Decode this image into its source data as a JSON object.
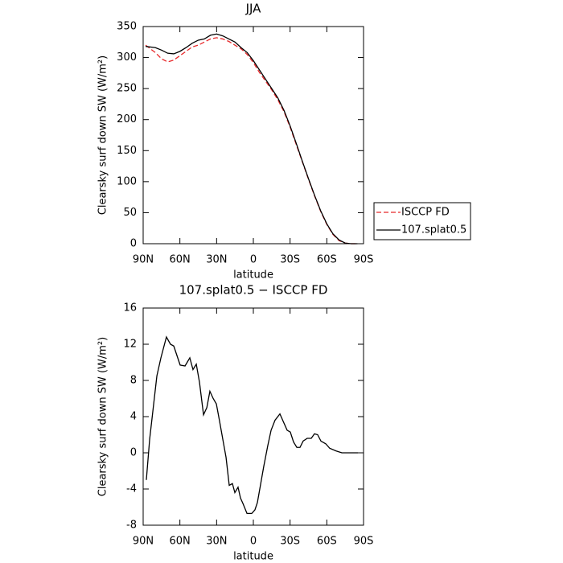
{
  "chart_data": [
    {
      "type": "line",
      "title": "JJA",
      "x_label": "latitude",
      "y_label": "Clearsky surf down SW (W/m²)",
      "xlim": [
        90,
        -90
      ],
      "ylim": [
        0,
        350
      ],
      "xticks": [
        {
          "value": 90,
          "label": "90N"
        },
        {
          "value": 60,
          "label": "60N"
        },
        {
          "value": 30,
          "label": "30N"
        },
        0,
        {
          "value": -30,
          "label": "30S"
        },
        {
          "value": -60,
          "label": "60S"
        },
        {
          "value": -90,
          "label": "90S"
        }
      ],
      "yticks": [
        0,
        50,
        100,
        150,
        200,
        250,
        300,
        350
      ],
      "legend": "outside-right",
      "x": [
        88,
        80,
        75,
        70,
        65,
        60,
        55,
        50,
        45,
        40,
        35,
        30,
        25,
        20,
        15,
        10,
        5,
        0,
        -5,
        -10,
        -15,
        -20,
        -25,
        -30,
        -35,
        -40,
        -45,
        -50,
        -55,
        -60,
        -65,
        -70,
        -75,
        -80,
        -85
      ],
      "series": [
        {
          "name": "ISCCP FD",
          "color": "#e8292b",
          "dashed": true,
          "values": [
            320,
            308,
            298,
            293,
            296,
            303,
            310,
            317,
            320,
            325,
            330,
            332,
            330,
            326,
            320,
            314,
            305,
            292,
            276,
            262,
            248,
            232,
            213,
            188,
            160,
            132,
            104,
            77,
            52,
            31,
            15,
            5,
            1,
            0,
            0
          ]
        },
        {
          "name": "107.splat0.5",
          "color": "#000000",
          "dashed": false,
          "values": [
            318,
            316,
            312,
            307,
            306,
            310,
            316,
            323,
            328,
            330,
            336,
            338,
            335,
            330,
            325,
            316,
            308,
            295,
            280,
            265,
            250,
            235,
            215,
            190,
            162,
            133,
            105,
            78,
            53,
            32,
            16,
            6,
            1,
            0,
            0
          ]
        }
      ]
    },
    {
      "type": "line",
      "title": "107.splat0.5 − ISCCP FD",
      "x_label": "latitude",
      "y_label": "Clearsky surf down SW (W/m²)",
      "xlim": [
        90,
        -90
      ],
      "ylim": [
        -8,
        16
      ],
      "xticks": [
        {
          "value": 90,
          "label": "90N"
        },
        {
          "value": 60,
          "label": "60N"
        },
        {
          "value": 30,
          "label": "30N"
        },
        0,
        {
          "value": -30,
          "label": "30S"
        },
        {
          "value": -60,
          "label": "60S"
        },
        {
          "value": -90,
          "label": "90S"
        }
      ],
      "yticks": [
        -8,
        -4,
        0,
        4,
        8,
        12,
        16
      ],
      "color": "#000000",
      "x": [
        87.4,
        84.7,
        78.8,
        75.5,
        71,
        67.7,
        65,
        59.8,
        55.8,
        51.9,
        49.3,
        46.6,
        44,
        40.7,
        38,
        35.5,
        32.8,
        30.2,
        27.6,
        24.3,
        22.3,
        19.7,
        17.1,
        15.1,
        12.5,
        10.5,
        8.5,
        5.2,
        1.3,
        -1.3,
        -3.3,
        -5.9,
        -8.5,
        -11.8,
        -14.5,
        -17.7,
        -21.7,
        -24.3,
        -27.6,
        -30.2,
        -32.8,
        -35.5,
        -38.1,
        -40.7,
        -44,
        -47.3,
        -49.9,
        -52.5,
        -55.2,
        -59.1,
        -62.4,
        -67.7,
        -72.3,
        -76.9,
        -82.1,
        -85.4
      ],
      "values": [
        -3,
        1.5,
        8.5,
        10.5,
        12.8,
        12,
        11.8,
        9.7,
        9.6,
        10.5,
        9.2,
        9.8,
        7.8,
        4.2,
        5,
        6.8,
        6,
        5.4,
        3.5,
        1,
        -0.5,
        -3.6,
        -3.4,
        -4.4,
        -3.8,
        -5,
        -5.6,
        -6.7,
        -6.7,
        -6.3,
        -5.5,
        -3.5,
        -1.5,
        0.8,
        2.5,
        3.6,
        4.3,
        3.5,
        2.5,
        2.3,
        1.2,
        0.6,
        0.6,
        1.3,
        1.6,
        1.6,
        2.1,
        2,
        1.3,
        1,
        0.5,
        0.2,
        0,
        0,
        0,
        0
      ]
    }
  ]
}
